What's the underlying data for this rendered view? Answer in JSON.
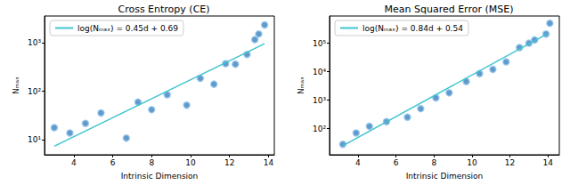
{
  "chart_data": [
    {
      "type": "scatter",
      "title": "Cross Entropy (CE)",
      "x_label": "Intrinsic Dimension",
      "y_label": "Nₘₐₓ",
      "log": "y",
      "grid": false,
      "legend": "upper left",
      "xlim": [
        2.5,
        14.3
      ],
      "xticks": [
        4,
        6,
        8,
        10,
        12,
        14
      ],
      "ylim": [
        5,
        3500
      ],
      "yticks": [
        {
          "value": 10,
          "label": "10¹"
        },
        {
          "value": 100,
          "label": "10²"
        },
        {
          "value": 1000,
          "label": "10³"
        }
      ],
      "series": [
        {
          "type": "scatter",
          "color": "#3b7fc0",
          "marker": "circle",
          "x": [
            3.0,
            3.8,
            4.6,
            5.4,
            6.7,
            7.3,
            8.0,
            8.8,
            9.8,
            10.5,
            11.2,
            11.8,
            12.3,
            12.9,
            13.3,
            13.5,
            13.8
          ],
          "values": [
            18,
            14,
            22,
            36,
            11,
            60,
            42,
            85,
            52,
            185,
            140,
            370,
            360,
            570,
            1150,
            1500,
            2300
          ]
        },
        {
          "type": "line",
          "name": "log(Nₘₐₓ) = 0.45d + 0.69",
          "color": "#3fc4cf",
          "line_style": "solid",
          "x": [
            3.0,
            13.8
          ],
          "values": [
            7.5,
            950
          ]
        }
      ]
    },
    {
      "type": "scatter",
      "title": "Mean Squared Error (MSE)",
      "x_label": "Intrinsic Dimension",
      "y_label": "Nₘₐₓ",
      "log": "y",
      "grid": false,
      "legend": "upper left",
      "xlim": [
        2.5,
        14.6
      ],
      "xticks": [
        4,
        6,
        8,
        10,
        12,
        14
      ],
      "ylim": [
        12,
        900000
      ],
      "yticks": [
        {
          "value": 100,
          "label": "10²"
        },
        {
          "value": 1000,
          "label": "10³"
        },
        {
          "value": 10000,
          "label": "10⁴"
        },
        {
          "value": 100000,
          "label": "10⁵"
        }
      ],
      "series": [
        {
          "type": "scatter",
          "color": "#3b7fc0",
          "marker": "circle",
          "x": [
            3.2,
            3.9,
            4.6,
            5.5,
            6.6,
            7.3,
            8.1,
            8.8,
            9.7,
            10.4,
            11.1,
            11.8,
            12.5,
            13.0,
            13.3,
            13.9,
            14.1
          ],
          "values": [
            28,
            70,
            120,
            175,
            250,
            500,
            1200,
            1800,
            4500,
            8500,
            12000,
            22000,
            70000,
            100000,
            130000,
            210000,
            500000
          ]
        },
        {
          "type": "line",
          "name": "log(Nₘₐₓ) = 0.84d + 0.54",
          "color": "#3fc4cf",
          "line_style": "solid",
          "x": [
            3.2,
            14.0
          ],
          "values": [
            25,
            220000
          ]
        }
      ]
    }
  ]
}
